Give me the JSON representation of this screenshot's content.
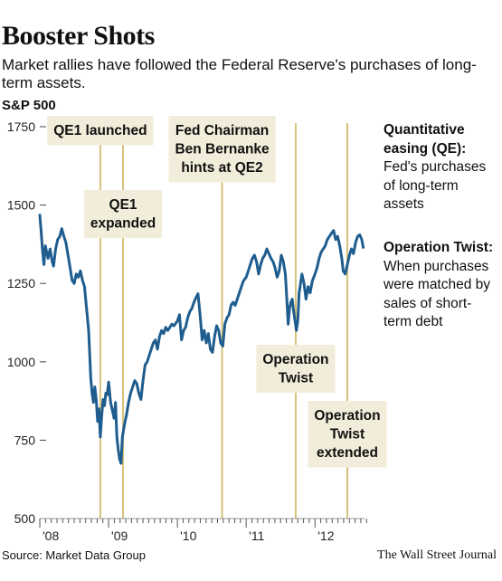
{
  "title": "Booster Shots",
  "subtitle": "Market rallies have followed the Federal Reserve's purchases of long-term assets.",
  "source": "Source: Market Data Group",
  "credit": "The Wall Street Journal",
  "legend": {
    "qe_title": "Quantitative easing (QE):",
    "qe_text": "Fed's purchases of long-term assets",
    "twist_title": "Operation Twist:",
    "twist_text": "When purchases were matched by sales of short-term debt"
  },
  "colors": {
    "line": "#1f5d8f",
    "event_line": "#d6c27a",
    "label_box": "#f1edda",
    "axis": "#9a9a9a"
  },
  "chart_data": {
    "type": "line",
    "title": "Booster Shots",
    "ylabel": "S&P 500",
    "xlabel": "",
    "ylim": [
      500,
      1750
    ],
    "y_ticks": [
      500,
      750,
      1000,
      1250,
      1500,
      1750
    ],
    "xlim": [
      2008.0,
      2012.72
    ],
    "x_ticks": [
      {
        "x": 2008.0,
        "label": "'08"
      },
      {
        "x": 2009.0,
        "label": "'09"
      },
      {
        "x": 2010.0,
        "label": "'10"
      },
      {
        "x": 2011.0,
        "label": "'11"
      },
      {
        "x": 2012.0,
        "label": "'12"
      }
    ],
    "series": [
      {
        "values": [
          [
            2008.0,
            1468
          ],
          [
            2008.02,
            1415
          ],
          [
            2008.04,
            1355
          ],
          [
            2008.06,
            1310
          ],
          [
            2008.08,
            1370
          ],
          [
            2008.1,
            1350
          ],
          [
            2008.12,
            1330
          ],
          [
            2008.15,
            1360
          ],
          [
            2008.18,
            1320
          ],
          [
            2008.2,
            1305
          ],
          [
            2008.23,
            1360
          ],
          [
            2008.26,
            1390
          ],
          [
            2008.29,
            1400
          ],
          [
            2008.32,
            1425
          ],
          [
            2008.35,
            1400
          ],
          [
            2008.38,
            1380
          ],
          [
            2008.41,
            1340
          ],
          [
            2008.44,
            1300
          ],
          [
            2008.47,
            1260
          ],
          [
            2008.5,
            1250
          ],
          [
            2008.53,
            1280
          ],
          [
            2008.56,
            1270
          ],
          [
            2008.59,
            1290
          ],
          [
            2008.62,
            1260
          ],
          [
            2008.65,
            1240
          ],
          [
            2008.68,
            1170
          ],
          [
            2008.71,
            1100
          ],
          [
            2008.74,
            950
          ],
          [
            2008.76,
            900
          ],
          [
            2008.78,
            870
          ],
          [
            2008.8,
            920
          ],
          [
            2008.82,
            880
          ],
          [
            2008.84,
            810
          ],
          [
            2008.86,
            850
          ],
          [
            2008.88,
            760
          ],
          [
            2008.9,
            830
          ],
          [
            2008.92,
            880
          ],
          [
            2008.94,
            860
          ],
          [
            2008.96,
            900
          ],
          [
            2008.98,
            895
          ],
          [
            2009.0,
            935
          ],
          [
            2009.03,
            870
          ],
          [
            2009.06,
            840
          ],
          [
            2009.08,
            820
          ],
          [
            2009.1,
            870
          ],
          [
            2009.12,
            760
          ],
          [
            2009.14,
            720
          ],
          [
            2009.16,
            690
          ],
          [
            2009.18,
            676
          ],
          [
            2009.2,
            760
          ],
          [
            2009.23,
            800
          ],
          [
            2009.26,
            830
          ],
          [
            2009.29,
            870
          ],
          [
            2009.32,
            900
          ],
          [
            2009.35,
            920
          ],
          [
            2009.38,
            940
          ],
          [
            2009.41,
            930
          ],
          [
            2009.44,
            900
          ],
          [
            2009.47,
            880
          ],
          [
            2009.5,
            940
          ],
          [
            2009.53,
            990
          ],
          [
            2009.56,
            1000
          ],
          [
            2009.59,
            1020
          ],
          [
            2009.62,
            1040
          ],
          [
            2009.65,
            1060
          ],
          [
            2009.68,
            1070
          ],
          [
            2009.71,
            1040
          ],
          [
            2009.74,
            1080
          ],
          [
            2009.77,
            1100
          ],
          [
            2009.8,
            1090
          ],
          [
            2009.83,
            1110
          ],
          [
            2009.86,
            1100
          ],
          [
            2009.89,
            1110
          ],
          [
            2009.92,
            1120
          ],
          [
            2009.95,
            1115
          ],
          [
            2010.0,
            1130
          ],
          [
            2010.03,
            1150
          ],
          [
            2010.06,
            1070
          ],
          [
            2010.09,
            1100
          ],
          [
            2010.12,
            1110
          ],
          [
            2010.15,
            1140
          ],
          [
            2010.18,
            1160
          ],
          [
            2010.21,
            1170
          ],
          [
            2010.24,
            1190
          ],
          [
            2010.27,
            1205
          ],
          [
            2010.3,
            1217
          ],
          [
            2010.33,
            1150
          ],
          [
            2010.36,
            1070
          ],
          [
            2010.39,
            1100
          ],
          [
            2010.42,
            1060
          ],
          [
            2010.45,
            1090
          ],
          [
            2010.48,
            1040
          ],
          [
            2010.51,
            1030
          ],
          [
            2010.54,
            1080
          ],
          [
            2010.57,
            1115
          ],
          [
            2010.6,
            1100
          ],
          [
            2010.63,
            1060
          ],
          [
            2010.66,
            1050
          ],
          [
            2010.69,
            1120
          ],
          [
            2010.72,
            1140
          ],
          [
            2010.75,
            1150
          ],
          [
            2010.78,
            1180
          ],
          [
            2010.81,
            1190
          ],
          [
            2010.84,
            1180
          ],
          [
            2010.87,
            1200
          ],
          [
            2010.9,
            1220
          ],
          [
            2010.93,
            1240
          ],
          [
            2010.96,
            1258
          ],
          [
            2011.0,
            1270
          ],
          [
            2011.03,
            1290
          ],
          [
            2011.06,
            1310
          ],
          [
            2011.09,
            1330
          ],
          [
            2011.12,
            1340
          ],
          [
            2011.15,
            1320
          ],
          [
            2011.18,
            1280
          ],
          [
            2011.21,
            1310
          ],
          [
            2011.24,
            1330
          ],
          [
            2011.27,
            1340
          ],
          [
            2011.3,
            1360
          ],
          [
            2011.33,
            1345
          ],
          [
            2011.36,
            1330
          ],
          [
            2011.39,
            1320
          ],
          [
            2011.42,
            1300
          ],
          [
            2011.45,
            1270
          ],
          [
            2011.48,
            1290
          ],
          [
            2011.51,
            1340
          ],
          [
            2011.54,
            1320
          ],
          [
            2011.57,
            1280
          ],
          [
            2011.59,
            1200
          ],
          [
            2011.61,
            1120
          ],
          [
            2011.63,
            1170
          ],
          [
            2011.65,
            1190
          ],
          [
            2011.67,
            1200
          ],
          [
            2011.69,
            1160
          ],
          [
            2011.71,
            1130
          ],
          [
            2011.73,
            1100
          ],
          [
            2011.75,
            1130
          ],
          [
            2011.77,
            1220
          ],
          [
            2011.79,
            1250
          ],
          [
            2011.81,
            1280
          ],
          [
            2011.84,
            1250
          ],
          [
            2011.87,
            1200
          ],
          [
            2011.9,
            1240
          ],
          [
            2011.93,
            1220
          ],
          [
            2011.96,
            1257
          ],
          [
            2012.0,
            1280
          ],
          [
            2012.03,
            1300
          ],
          [
            2012.06,
            1330
          ],
          [
            2012.09,
            1350
          ],
          [
            2012.12,
            1360
          ],
          [
            2012.15,
            1370
          ],
          [
            2012.18,
            1390
          ],
          [
            2012.21,
            1400
          ],
          [
            2012.24,
            1410
          ],
          [
            2012.27,
            1419
          ],
          [
            2012.3,
            1390
          ],
          [
            2012.33,
            1400
          ],
          [
            2012.36,
            1370
          ],
          [
            2012.39,
            1330
          ],
          [
            2012.41,
            1290
          ],
          [
            2012.44,
            1280
          ],
          [
            2012.47,
            1310
          ],
          [
            2012.5,
            1340
          ],
          [
            2012.53,
            1360
          ],
          [
            2012.56,
            1345
          ],
          [
            2012.59,
            1380
          ],
          [
            2012.62,
            1400
          ],
          [
            2012.65,
            1405
          ],
          [
            2012.68,
            1390
          ],
          [
            2012.7,
            1365
          ]
        ]
      }
    ],
    "annotations": [
      {
        "id": "qe1-launched",
        "x": 2008.88,
        "lines": [
          "QE1 launched"
        ]
      },
      {
        "id": "qe1-expanded",
        "x": 2009.21,
        "lines": [
          "QE1",
          "expanded"
        ]
      },
      {
        "id": "qe2-hint",
        "x": 2010.65,
        "lines": [
          "Fed Chairman",
          "Ben Bernanke",
          "hints at QE2"
        ]
      },
      {
        "id": "operation-twist",
        "x": 2011.72,
        "lines": [
          "Operation",
          "Twist"
        ]
      },
      {
        "id": "operation-twist-extended",
        "x": 2012.47,
        "lines": [
          "Operation",
          "Twist",
          "extended"
        ]
      }
    ]
  }
}
